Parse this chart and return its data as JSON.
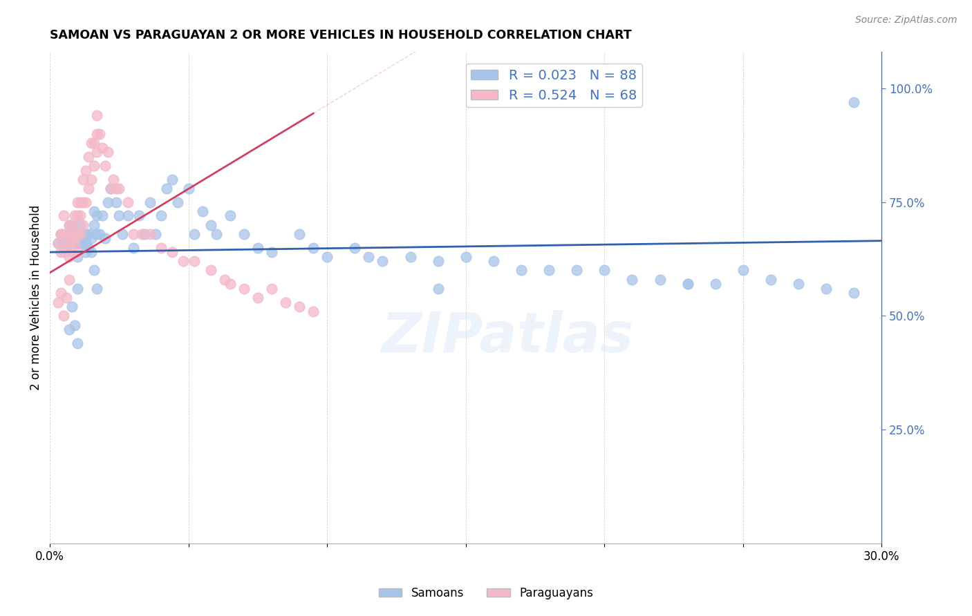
{
  "title": "SAMOAN VS PARAGUAYAN 2 OR MORE VEHICLES IN HOUSEHOLD CORRELATION CHART",
  "source": "Source: ZipAtlas.com",
  "ylabel": "2 or more Vehicles in Household",
  "x_min": 0.0,
  "x_max": 0.3,
  "y_min": 0.0,
  "y_max": 1.08,
  "x_ticks": [
    0.0,
    0.05,
    0.1,
    0.15,
    0.2,
    0.25,
    0.3
  ],
  "y_ticks_right": [
    0.25,
    0.5,
    0.75,
    1.0
  ],
  "y_tick_labels_right": [
    "25.0%",
    "50.0%",
    "75.0%",
    "100.0%"
  ],
  "samoan_color": "#a8c4e8",
  "paraguayan_color": "#f4b8c8",
  "samoan_line_color": "#3060b0",
  "paraguayan_line_color": "#d04060",
  "background_color": "#ffffff",
  "watermark": "ZIPatlas",
  "samoans_x": [
    0.003,
    0.004,
    0.005,
    0.006,
    0.007,
    0.007,
    0.008,
    0.008,
    0.009,
    0.009,
    0.01,
    0.01,
    0.01,
    0.011,
    0.011,
    0.012,
    0.012,
    0.013,
    0.013,
    0.013,
    0.014,
    0.014,
    0.015,
    0.015,
    0.016,
    0.016,
    0.017,
    0.017,
    0.018,
    0.019,
    0.02,
    0.021,
    0.022,
    0.024,
    0.025,
    0.026,
    0.028,
    0.03,
    0.032,
    0.034,
    0.036,
    0.038,
    0.04,
    0.042,
    0.044,
    0.046,
    0.05,
    0.052,
    0.055,
    0.058,
    0.06,
    0.065,
    0.07,
    0.075,
    0.08,
    0.09,
    0.095,
    0.1,
    0.11,
    0.115,
    0.12,
    0.13,
    0.14,
    0.15,
    0.16,
    0.17,
    0.18,
    0.19,
    0.2,
    0.21,
    0.22,
    0.23,
    0.24,
    0.25,
    0.26,
    0.27,
    0.28,
    0.14,
    0.23,
    0.29,
    0.007,
    0.008,
    0.009,
    0.01,
    0.01,
    0.016,
    0.017,
    0.29
  ],
  "samoans_y": [
    0.66,
    0.68,
    0.66,
    0.68,
    0.66,
    0.7,
    0.66,
    0.7,
    0.66,
    0.68,
    0.63,
    0.66,
    0.68,
    0.66,
    0.7,
    0.66,
    0.68,
    0.64,
    0.66,
    0.68,
    0.65,
    0.68,
    0.64,
    0.67,
    0.7,
    0.73,
    0.68,
    0.72,
    0.68,
    0.72,
    0.67,
    0.75,
    0.78,
    0.75,
    0.72,
    0.68,
    0.72,
    0.65,
    0.72,
    0.68,
    0.75,
    0.68,
    0.72,
    0.78,
    0.8,
    0.75,
    0.78,
    0.68,
    0.73,
    0.7,
    0.68,
    0.72,
    0.68,
    0.65,
    0.64,
    0.68,
    0.65,
    0.63,
    0.65,
    0.63,
    0.62,
    0.63,
    0.62,
    0.63,
    0.62,
    0.6,
    0.6,
    0.6,
    0.6,
    0.58,
    0.58,
    0.57,
    0.57,
    0.6,
    0.58,
    0.57,
    0.56,
    0.56,
    0.57,
    0.55,
    0.47,
    0.52,
    0.48,
    0.44,
    0.56,
    0.6,
    0.56,
    0.97
  ],
  "paraguayans_x": [
    0.003,
    0.004,
    0.004,
    0.005,
    0.005,
    0.005,
    0.006,
    0.006,
    0.007,
    0.007,
    0.007,
    0.008,
    0.008,
    0.008,
    0.009,
    0.009,
    0.009,
    0.01,
    0.01,
    0.01,
    0.01,
    0.011,
    0.011,
    0.011,
    0.012,
    0.012,
    0.012,
    0.013,
    0.013,
    0.014,
    0.014,
    0.015,
    0.015,
    0.016,
    0.016,
    0.017,
    0.017,
    0.017,
    0.018,
    0.019,
    0.02,
    0.021,
    0.022,
    0.023,
    0.024,
    0.025,
    0.028,
    0.03,
    0.033,
    0.036,
    0.04,
    0.044,
    0.048,
    0.052,
    0.058,
    0.063,
    0.065,
    0.07,
    0.075,
    0.08,
    0.085,
    0.09,
    0.095,
    0.003,
    0.004,
    0.005,
    0.006,
    0.007
  ],
  "paraguayans_y": [
    0.66,
    0.64,
    0.68,
    0.64,
    0.68,
    0.72,
    0.65,
    0.68,
    0.63,
    0.66,
    0.7,
    0.64,
    0.67,
    0.7,
    0.66,
    0.68,
    0.72,
    0.64,
    0.68,
    0.72,
    0.75,
    0.68,
    0.72,
    0.75,
    0.7,
    0.75,
    0.8,
    0.75,
    0.82,
    0.78,
    0.85,
    0.8,
    0.88,
    0.83,
    0.88,
    0.86,
    0.9,
    0.94,
    0.9,
    0.87,
    0.83,
    0.86,
    0.78,
    0.8,
    0.78,
    0.78,
    0.75,
    0.68,
    0.68,
    0.68,
    0.65,
    0.64,
    0.62,
    0.62,
    0.6,
    0.58,
    0.57,
    0.56,
    0.54,
    0.56,
    0.53,
    0.52,
    0.51,
    0.53,
    0.55,
    0.5,
    0.54,
    0.58
  ],
  "samoan_line": {
    "x0": 0.0,
    "x1": 0.3,
    "y0": 0.64,
    "y1": 0.665
  },
  "paraguayan_line": {
    "x0": 0.0,
    "x1": 0.095,
    "y0": 0.595,
    "y1": 0.945
  }
}
